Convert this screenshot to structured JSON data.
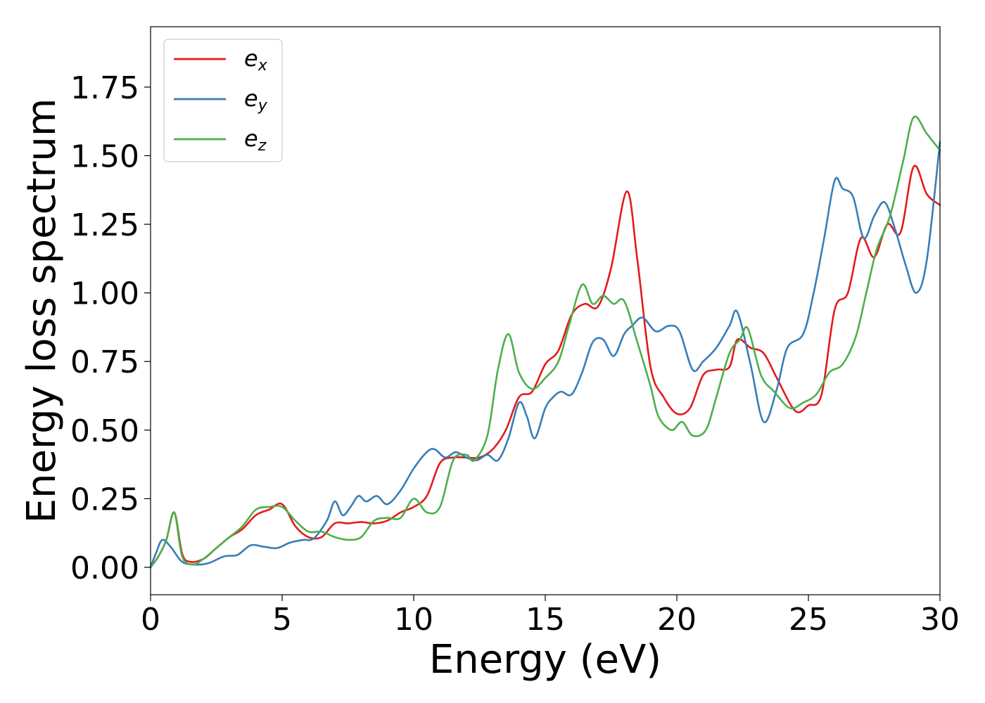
{
  "chart_data": {
    "type": "line",
    "xlabel": "Energy (eV)",
    "ylabel": "Energy loss spectrum",
    "xlim": [
      0,
      30
    ],
    "ylim": [
      -0.1,
      1.97
    ],
    "xticks": [
      0,
      5,
      10,
      15,
      20,
      25,
      30
    ],
    "xtick_labels": [
      "0",
      "5",
      "10",
      "15",
      "20",
      "25",
      "30"
    ],
    "yticks": [
      0,
      0.25,
      0.5,
      0.75,
      1.0,
      1.25,
      1.5,
      1.75
    ],
    "ytick_labels": [
      "0.00",
      "0.25",
      "0.50",
      "0.75",
      "1.00",
      "1.25",
      "1.50",
      "1.75"
    ],
    "grid": false,
    "legend_position": "top-left",
    "series": [
      {
        "name": "e_x",
        "legend_base": "e",
        "legend_sub": "x",
        "color": "#e41a1c",
        "points": [
          [
            0,
            0
          ],
          [
            0.3,
            0.04
          ],
          [
            0.6,
            0.1
          ],
          [
            0.9,
            0.2
          ],
          [
            1.2,
            0.05
          ],
          [
            1.5,
            0.02
          ],
          [
            2,
            0.03
          ],
          [
            2.5,
            0.07
          ],
          [
            3,
            0.11
          ],
          [
            3.5,
            0.14
          ],
          [
            4,
            0.19
          ],
          [
            4.5,
            0.21
          ],
          [
            5,
            0.23
          ],
          [
            5.5,
            0.15
          ],
          [
            6,
            0.11
          ],
          [
            6.5,
            0.11
          ],
          [
            7,
            0.16
          ],
          [
            7.5,
            0.16
          ],
          [
            8,
            0.165
          ],
          [
            8.5,
            0.16
          ],
          [
            9,
            0.17
          ],
          [
            9.5,
            0.2
          ],
          [
            10,
            0.22
          ],
          [
            10.5,
            0.26
          ],
          [
            11,
            0.38
          ],
          [
            11.5,
            0.4
          ],
          [
            12,
            0.4
          ],
          [
            12.5,
            0.4
          ],
          [
            13,
            0.43
          ],
          [
            13.5,
            0.5
          ],
          [
            14,
            0.62
          ],
          [
            14.5,
            0.64
          ],
          [
            15,
            0.74
          ],
          [
            15.5,
            0.79
          ],
          [
            16,
            0.92
          ],
          [
            16.5,
            0.96
          ],
          [
            17,
            0.95
          ],
          [
            17.5,
            1.09
          ],
          [
            18.1,
            1.37
          ],
          [
            18.5,
            1.12
          ],
          [
            19,
            0.73
          ],
          [
            19.5,
            0.62
          ],
          [
            20,
            0.56
          ],
          [
            20.5,
            0.58
          ],
          [
            21,
            0.7
          ],
          [
            21.5,
            0.72
          ],
          [
            22,
            0.73
          ],
          [
            22.3,
            0.83
          ],
          [
            22.8,
            0.8
          ],
          [
            23.3,
            0.78
          ],
          [
            23.8,
            0.69
          ],
          [
            24.5,
            0.57
          ],
          [
            25,
            0.59
          ],
          [
            25.5,
            0.63
          ],
          [
            26,
            0.94
          ],
          [
            26.5,
            1.0
          ],
          [
            27,
            1.2
          ],
          [
            27.5,
            1.13
          ],
          [
            28,
            1.25
          ],
          [
            28.5,
            1.22
          ],
          [
            29,
            1.46
          ],
          [
            29.5,
            1.36
          ],
          [
            30,
            1.32
          ]
        ]
      },
      {
        "name": "e_y",
        "legend_base": "e",
        "legend_sub": "y",
        "color": "#377eb8",
        "points": [
          [
            0,
            0
          ],
          [
            0.2,
            0.05
          ],
          [
            0.45,
            0.1
          ],
          [
            0.8,
            0.07
          ],
          [
            1.2,
            0.02
          ],
          [
            1.7,
            0.01
          ],
          [
            2.2,
            0.015
          ],
          [
            2.8,
            0.04
          ],
          [
            3.3,
            0.045
          ],
          [
            3.8,
            0.08
          ],
          [
            4.3,
            0.075
          ],
          [
            4.8,
            0.07
          ],
          [
            5.3,
            0.09
          ],
          [
            5.8,
            0.1
          ],
          [
            6.2,
            0.105
          ],
          [
            6.7,
            0.17
          ],
          [
            7,
            0.24
          ],
          [
            7.3,
            0.19
          ],
          [
            7.6,
            0.22
          ],
          [
            7.9,
            0.26
          ],
          [
            8.2,
            0.24
          ],
          [
            8.6,
            0.26
          ],
          [
            9,
            0.23
          ],
          [
            9.5,
            0.28
          ],
          [
            10,
            0.36
          ],
          [
            10.5,
            0.42
          ],
          [
            10.8,
            0.43
          ],
          [
            11.2,
            0.4
          ],
          [
            11.6,
            0.42
          ],
          [
            12,
            0.4
          ],
          [
            12.4,
            0.39
          ],
          [
            12.8,
            0.41
          ],
          [
            13.2,
            0.39
          ],
          [
            13.6,
            0.47
          ],
          [
            14,
            0.6
          ],
          [
            14.3,
            0.55
          ],
          [
            14.6,
            0.47
          ],
          [
            15,
            0.58
          ],
          [
            15.3,
            0.62
          ],
          [
            15.6,
            0.64
          ],
          [
            16,
            0.63
          ],
          [
            16.4,
            0.71
          ],
          [
            16.8,
            0.82
          ],
          [
            17.2,
            0.83
          ],
          [
            17.6,
            0.77
          ],
          [
            18,
            0.85
          ],
          [
            18.3,
            0.88
          ],
          [
            18.7,
            0.91
          ],
          [
            19.2,
            0.86
          ],
          [
            19.7,
            0.88
          ],
          [
            20.1,
            0.86
          ],
          [
            20.6,
            0.72
          ],
          [
            21,
            0.75
          ],
          [
            21.5,
            0.8
          ],
          [
            22,
            0.88
          ],
          [
            22.3,
            0.93
          ],
          [
            22.8,
            0.74
          ],
          [
            23.3,
            0.53
          ],
          [
            23.8,
            0.65
          ],
          [
            24.2,
            0.8
          ],
          [
            24.8,
            0.85
          ],
          [
            25.2,
            1.0
          ],
          [
            25.6,
            1.2
          ],
          [
            26,
            1.41
          ],
          [
            26.3,
            1.38
          ],
          [
            26.7,
            1.35
          ],
          [
            27.1,
            1.2
          ],
          [
            27.5,
            1.28
          ],
          [
            27.9,
            1.33
          ],
          [
            28.3,
            1.23
          ],
          [
            28.7,
            1.1
          ],
          [
            29.1,
            1.0
          ],
          [
            29.5,
            1.12
          ],
          [
            30,
            1.55
          ]
        ]
      },
      {
        "name": "e_z",
        "legend_base": "e",
        "legend_sub": "z",
        "color": "#4daf4a",
        "points": [
          [
            0,
            0
          ],
          [
            0.3,
            0.04
          ],
          [
            0.6,
            0.1
          ],
          [
            0.9,
            0.2
          ],
          [
            1.2,
            0.04
          ],
          [
            1.6,
            0.01
          ],
          [
            2,
            0.03
          ],
          [
            2.5,
            0.07
          ],
          [
            3,
            0.11
          ],
          [
            3.5,
            0.15
          ],
          [
            4,
            0.21
          ],
          [
            4.5,
            0.22
          ],
          [
            5,
            0.22
          ],
          [
            5.5,
            0.17
          ],
          [
            6,
            0.13
          ],
          [
            6.5,
            0.13
          ],
          [
            7,
            0.11
          ],
          [
            7.5,
            0.1
          ],
          [
            8,
            0.11
          ],
          [
            8.5,
            0.17
          ],
          [
            9,
            0.18
          ],
          [
            9.5,
            0.18
          ],
          [
            10,
            0.25
          ],
          [
            10.5,
            0.2
          ],
          [
            11,
            0.22
          ],
          [
            11.5,
            0.39
          ],
          [
            12,
            0.41
          ],
          [
            12.3,
            0.39
          ],
          [
            12.8,
            0.48
          ],
          [
            13.2,
            0.72
          ],
          [
            13.6,
            0.85
          ],
          [
            14,
            0.71
          ],
          [
            14.5,
            0.65
          ],
          [
            15,
            0.69
          ],
          [
            15.5,
            0.75
          ],
          [
            15.9,
            0.88
          ],
          [
            16.4,
            1.03
          ],
          [
            16.8,
            0.96
          ],
          [
            17.2,
            0.99
          ],
          [
            17.6,
            0.96
          ],
          [
            18,
            0.97
          ],
          [
            18.5,
            0.82
          ],
          [
            19,
            0.66
          ],
          [
            19.3,
            0.55
          ],
          [
            19.8,
            0.5
          ],
          [
            20.2,
            0.53
          ],
          [
            20.6,
            0.48
          ],
          [
            21.1,
            0.5
          ],
          [
            21.5,
            0.62
          ],
          [
            22,
            0.78
          ],
          [
            22.4,
            0.83
          ],
          [
            22.7,
            0.87
          ],
          [
            23.2,
            0.7
          ],
          [
            23.7,
            0.64
          ],
          [
            24.3,
            0.58
          ],
          [
            24.8,
            0.6
          ],
          [
            25.3,
            0.63
          ],
          [
            25.8,
            0.71
          ],
          [
            26.3,
            0.74
          ],
          [
            26.8,
            0.84
          ],
          [
            27.2,
            1.0
          ],
          [
            27.6,
            1.16
          ],
          [
            28.1,
            1.28
          ],
          [
            28.6,
            1.48
          ],
          [
            29,
            1.64
          ],
          [
            29.5,
            1.58
          ],
          [
            30,
            1.52
          ]
        ]
      }
    ]
  }
}
